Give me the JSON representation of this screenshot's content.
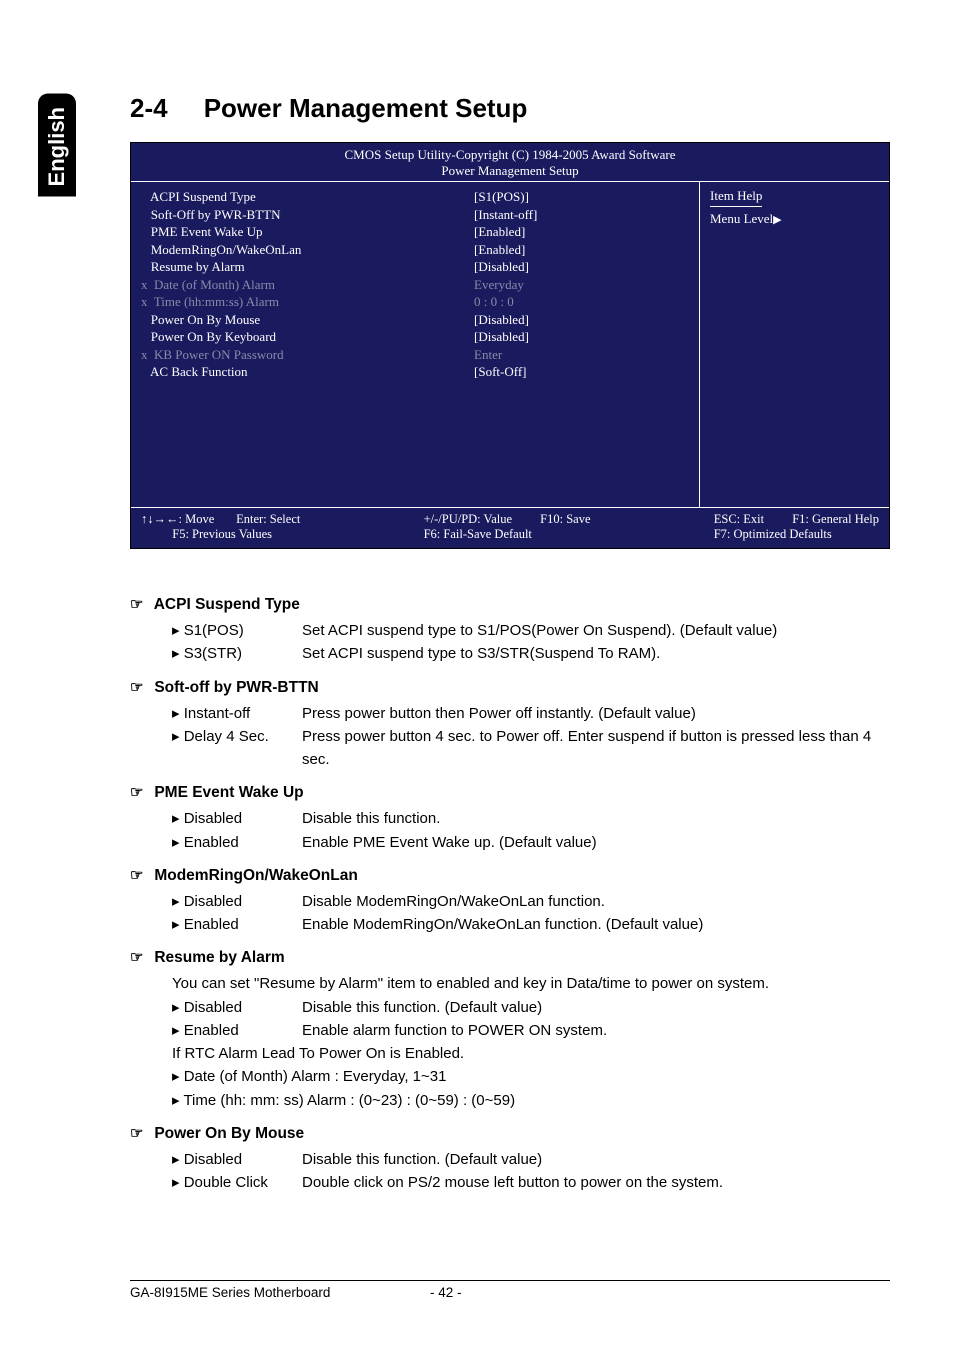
{
  "side_tab": "English",
  "heading_num": "2-4",
  "heading_text": "Power Management Setup",
  "bios": {
    "title_line1": "CMOS Setup Utility-Copyright (C) 1984-2005 Award Software",
    "title_line2": "Power Management Setup",
    "help_title": "Item Help",
    "help_menu": "Menu Level",
    "rows": [
      {
        "prefix": "   ",
        "label": "ACPI Suspend Type",
        "value": "[S1(POS)]",
        "grey": false
      },
      {
        "prefix": "   ",
        "label": "Soft-Off by PWR-BTTN",
        "value": "[Instant-off]",
        "grey": false
      },
      {
        "prefix": "   ",
        "label": "PME Event Wake Up",
        "value": "[Enabled]",
        "grey": false
      },
      {
        "prefix": "   ",
        "label": "ModemRingOn/WakeOnLan",
        "value": "[Enabled]",
        "grey": false
      },
      {
        "prefix": "   ",
        "label": "Resume by Alarm",
        "value": "[Disabled]",
        "grey": false
      },
      {
        "prefix": "x  ",
        "label": "Date (of Month) Alarm",
        "value": "Everyday",
        "grey": true
      },
      {
        "prefix": "x  ",
        "label": "Time (hh:mm:ss) Alarm",
        "value": "0 : 0 : 0",
        "grey": true
      },
      {
        "prefix": "   ",
        "label": "Power On By Mouse",
        "value": "[Disabled]",
        "grey": false
      },
      {
        "prefix": "   ",
        "label": "Power On By Keyboard",
        "value": "[Disabled]",
        "grey": false
      },
      {
        "prefix": "x  ",
        "label": "KB Power ON Password",
        "value": "Enter",
        "grey": true
      },
      {
        "prefix": "   ",
        "label": "AC Back Function",
        "value": "[Soft-Off]",
        "grey": false
      }
    ],
    "foot": {
      "c1a": "↑↓→←: Move       Enter: Select",
      "c1b": "          F5: Previous Values",
      "c2a": "+/-/PU/PD: Value         F10: Save",
      "c2b": "F6: Fail-Save Default",
      "c3a": "ESC: Exit         F1: General Help",
      "c3b": "F7: Optimized Defaults"
    },
    "colors": {
      "bg": "#1a1a5e",
      "text": "#ffffff",
      "grey": "#8a8aa8",
      "border": "#ffffff"
    }
  },
  "doc": {
    "s1": {
      "title": "ACPI Suspend Type",
      "o1l": "S1(POS)",
      "o1d": "Set ACPI suspend type to S1/POS(Power On Suspend). (Default value)",
      "o2l": "S3(STR)",
      "o2d": "Set ACPI suspend type to S3/STR(Suspend To RAM)."
    },
    "s2": {
      "title": "Soft-off by PWR-BTTN",
      "o1l": "Instant-off",
      "o1d": "Press power button then Power off instantly. (Default value)",
      "o2l": "Delay 4 Sec.",
      "o2d": "Press power button 4 sec. to Power off. Enter suspend if button is pressed less than 4 sec."
    },
    "s3": {
      "title": "PME Event Wake Up",
      "o1l": "Disabled",
      "o1d": "Disable this function.",
      "o2l": "Enabled",
      "o2d": "Enable PME Event Wake up. (Default value)"
    },
    "s4": {
      "title": "ModemRingOn/WakeOnLan",
      "o1l": "Disabled",
      "o1d": "Disable ModemRingOn/WakeOnLan function.",
      "o2l": "Enabled",
      "o2d": "Enable ModemRingOn/WakeOnLan function. (Default value)"
    },
    "s5": {
      "title": "Resume by Alarm",
      "intro": "You can set \"Resume by Alarm\" item to enabled and key in Data/time to power on system.",
      "o1l": "Disabled",
      "o1d": "Disable this function. (Default value)",
      "o2l": "Enabled",
      "o2d": "Enable alarm function to POWER ON system.",
      "line3": "If RTC Alarm Lead To Power On is Enabled.",
      "o3": "Date (of Month) Alarm :       Everyday, 1~31",
      "o4": "Time (hh: mm: ss) Alarm :   (0~23) : (0~59) : (0~59)"
    },
    "s6": {
      "title": "Power On By Mouse",
      "o1l": "Disabled",
      "o1d": "Disable this function. (Default value)",
      "o2l": "Double Click",
      "o2d": "Double click on PS/2 mouse left button to power on the system."
    }
  },
  "footer": {
    "left": "GA-8I915ME Series Motherboard",
    "right": "- 42 -"
  }
}
